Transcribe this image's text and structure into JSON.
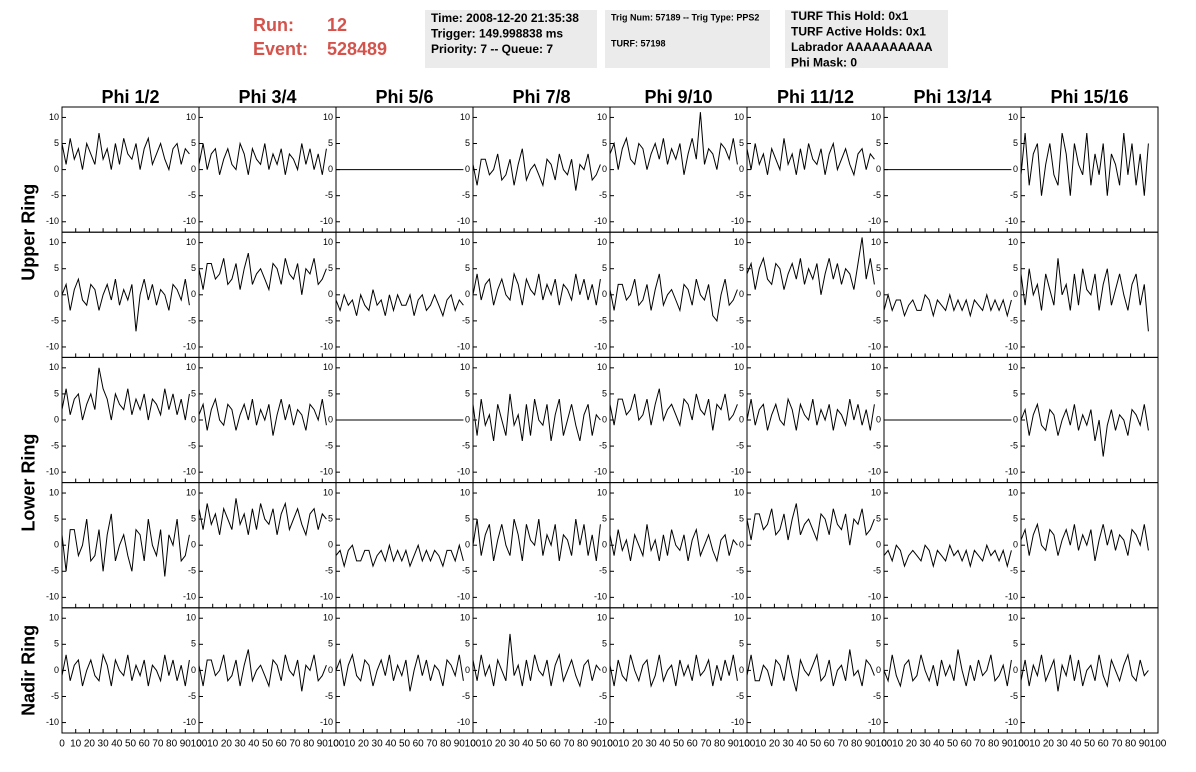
{
  "header": {
    "run_label": "Run:",
    "run": "12",
    "event_label": "Event:",
    "event": "528489",
    "info_boxes": [
      [
        "Time: 2008-12-20 21:35:38",
        "Trigger: 149.998838 ms",
        "Priority: 7 -- Queue: 7"
      ],
      [
        "Trig Num: 57189 -- Trig Type: PPS2",
        "TURF: 57198"
      ],
      [
        "TURF This Hold: 0x1",
        "TURF Active Holds: 0x1",
        "Labrador AAAAAAAAAA",
        "Phi Mask: 0"
      ]
    ]
  },
  "chart_data": {
    "type": "line",
    "columns": [
      "Phi 1/2",
      "Phi 3/4",
      "Phi 5/6",
      "Phi 7/8",
      "Phi 9/10",
      "Phi 11/12",
      "Phi 13/14",
      "Phi 15/16"
    ],
    "ring_labels": [
      "Upper Ring",
      "Lower Ring",
      "Nadir Ring"
    ],
    "color": "#000000",
    "x": [
      0,
      3,
      6,
      9,
      12,
      15,
      18,
      21,
      24,
      27,
      30,
      33,
      36,
      39,
      42,
      45,
      48,
      51,
      54,
      57,
      60,
      63,
      66,
      69,
      72,
      75,
      78,
      81,
      84,
      87,
      90,
      93
    ],
    "xlim": [
      0,
      100
    ],
    "xticks": [
      0,
      10,
      20,
      30,
      40,
      50,
      60,
      70,
      80,
      90,
      100
    ],
    "ylim": [
      -12,
      12
    ],
    "yticks": [
      -10,
      -5,
      0,
      5,
      10
    ],
    "panels": [
      [
        [
          5,
          1,
          6,
          2,
          4,
          0,
          5,
          3,
          1,
          7,
          2,
          4,
          0,
          5,
          1,
          6,
          3,
          2,
          5,
          0,
          4,
          6,
          1,
          3,
          5,
          2,
          0,
          4,
          5,
          1,
          4,
          3
        ],
        [
          1,
          5,
          0,
          3,
          4,
          -1,
          2,
          4,
          1,
          0,
          5,
          3,
          -1,
          4,
          2,
          1,
          5,
          0,
          3,
          1,
          4,
          -1,
          3,
          2,
          0,
          5,
          1,
          4,
          0,
          3,
          -1,
          4
        ],
        [
          0,
          0,
          0,
          0,
          0,
          0,
          0,
          0,
          0,
          0,
          0,
          0,
          0,
          0,
          0,
          0,
          0,
          0,
          0,
          0,
          0,
          0,
          0,
          0,
          0,
          0,
          0,
          0,
          0,
          0,
          0,
          0
        ],
        [
          1,
          -3,
          2,
          2,
          -1,
          0,
          3,
          -2,
          -1,
          2,
          -3,
          1,
          4,
          -2,
          0,
          1,
          -1,
          -3,
          2,
          1,
          -2,
          3,
          0,
          -1,
          2,
          -4,
          1,
          0,
          3,
          -2,
          -1,
          1
        ],
        [
          3,
          5,
          0,
          4,
          6,
          2,
          1,
          5,
          4,
          0,
          3,
          5,
          2,
          6,
          1,
          4,
          2,
          5,
          -1,
          3,
          6,
          2,
          11,
          1,
          4,
          3,
          0,
          5,
          4,
          2,
          6,
          1
        ],
        [
          4,
          0,
          5,
          1,
          3,
          -1,
          4,
          2,
          0,
          6,
          1,
          3,
          -1,
          4,
          0,
          5,
          2,
          1,
          4,
          -1,
          3,
          5,
          0,
          2,
          4,
          1,
          -1,
          3,
          4,
          0,
          3,
          2
        ],
        [
          0,
          0,
          0,
          0,
          0,
          0,
          0,
          0,
          0,
          0,
          0,
          0,
          0,
          0,
          0,
          0,
          0,
          0,
          0,
          0,
          0,
          0,
          0,
          0,
          0,
          0,
          0,
          0,
          0,
          0,
          0,
          0
        ],
        [
          -1,
          7,
          -3,
          3,
          5,
          -5,
          1,
          5,
          -1,
          -3,
          7,
          3,
          -5,
          5,
          1,
          -1,
          7,
          -3,
          3,
          -1,
          5,
          -5,
          3,
          1,
          -3,
          7,
          -1,
          5,
          -3,
          3,
          -5,
          5
        ]
      ],
      [
        [
          0,
          2,
          -3,
          1,
          3,
          -1,
          -2,
          2,
          1,
          -3,
          0,
          2,
          -1,
          3,
          -2,
          1,
          -1,
          2,
          -7,
          0,
          3,
          -1,
          2,
          -2,
          1,
          0,
          -3,
          2,
          1,
          -1,
          3,
          -2
        ],
        [
          5,
          1,
          6,
          6,
          3,
          4,
          7,
          2,
          3,
          6,
          1,
          5,
          8,
          2,
          4,
          5,
          3,
          1,
          6,
          5,
          2,
          7,
          4,
          3,
          6,
          0,
          5,
          4,
          7,
          2,
          3,
          5
        ],
        [
          -1,
          -3,
          0,
          -2,
          -1,
          -4,
          0,
          -2,
          -3,
          1,
          -2,
          -1,
          -4,
          0,
          -3,
          0,
          -2,
          -2,
          0,
          -4,
          -1,
          0,
          -3,
          -2,
          0,
          -2,
          -4,
          -1,
          0,
          -3,
          -1,
          -2
        ],
        [
          0,
          4,
          -1,
          2,
          3,
          -2,
          1,
          3,
          0,
          -1,
          4,
          2,
          -2,
          3,
          1,
          0,
          4,
          -1,
          2,
          0,
          3,
          -2,
          2,
          1,
          -1,
          4,
          0,
          3,
          -1,
          2,
          -2,
          3
        ],
        [
          1,
          -3,
          2,
          2,
          -1,
          0,
          3,
          -2,
          -1,
          2,
          -3,
          1,
          4,
          -2,
          0,
          1,
          -1,
          -3,
          2,
          1,
          -2,
          3,
          0,
          -1,
          2,
          -4,
          -5,
          0,
          3,
          -2,
          -1,
          1
        ],
        [
          4,
          6,
          1,
          5,
          7,
          3,
          2,
          6,
          5,
          1,
          4,
          6,
          3,
          7,
          2,
          5,
          3,
          6,
          0,
          4,
          7,
          3,
          6,
          2,
          5,
          4,
          1,
          6,
          11,
          3,
          7,
          2
        ],
        [
          -3,
          0,
          -3,
          -1,
          -1,
          -4,
          -2,
          -1,
          -3,
          -3,
          0,
          -1,
          -4,
          -1,
          -2,
          -3,
          0,
          -3,
          -1,
          -3,
          -1,
          -4,
          -1,
          -2,
          -3,
          0,
          -3,
          -1,
          -3,
          -1,
          -4,
          -1
        ],
        [
          4,
          -2,
          5,
          0,
          2,
          -3,
          4,
          1,
          -2,
          7,
          0,
          2,
          -3,
          4,
          -2,
          5,
          1,
          0,
          4,
          -3,
          2,
          5,
          -2,
          1,
          4,
          0,
          -3,
          2,
          4,
          -2,
          2,
          -7
        ]
      ],
      [
        [
          2,
          6,
          1,
          4,
          5,
          0,
          3,
          5,
          2,
          10,
          6,
          4,
          0,
          5,
          3,
          2,
          6,
          1,
          4,
          2,
          5,
          0,
          4,
          3,
          1,
          6,
          2,
          5,
          1,
          4,
          0,
          5
        ],
        [
          1,
          3,
          -2,
          2,
          4,
          0,
          -1,
          3,
          2,
          -2,
          1,
          3,
          0,
          4,
          -1,
          2,
          0,
          3,
          -3,
          1,
          4,
          0,
          3,
          -1,
          2,
          1,
          -2,
          3,
          2,
          0,
          4,
          -1
        ],
        [
          0,
          0,
          0,
          0,
          0,
          0,
          0,
          0,
          0,
          0,
          0,
          0,
          0,
          0,
          0,
          0,
          0,
          0,
          0,
          0,
          0,
          0,
          0,
          0,
          0,
          0,
          0,
          0,
          0,
          0,
          0,
          0
        ],
        [
          3,
          -3,
          4,
          -1,
          1,
          -4,
          3,
          0,
          -3,
          5,
          -1,
          1,
          -4,
          3,
          -3,
          4,
          0,
          -1,
          3,
          -4,
          1,
          4,
          -3,
          0,
          3,
          -1,
          -4,
          1,
          3,
          -3,
          1,
          0
        ],
        [
          3,
          -1,
          4,
          4,
          1,
          2,
          5,
          0,
          1,
          4,
          -1,
          3,
          6,
          0,
          2,
          3,
          1,
          -1,
          4,
          3,
          0,
          5,
          2,
          1,
          4,
          -2,
          3,
          2,
          5,
          0,
          1,
          3
        ],
        [
          0,
          4,
          -1,
          2,
          3,
          -2,
          1,
          3,
          0,
          -1,
          4,
          2,
          -2,
          3,
          1,
          0,
          4,
          -1,
          2,
          0,
          3,
          -2,
          2,
          1,
          -1,
          4,
          0,
          3,
          -1,
          2,
          -2,
          3
        ],
        [
          0,
          0,
          0,
          0,
          0,
          0,
          0,
          0,
          0,
          0,
          0,
          0,
          0,
          0,
          0,
          0,
          0,
          0,
          0,
          0,
          0,
          0,
          0,
          0,
          0,
          0,
          0,
          0,
          0,
          0,
          0,
          0
        ],
        [
          0,
          2,
          -3,
          1,
          3,
          -1,
          -2,
          2,
          1,
          -3,
          0,
          2,
          -1,
          3,
          -2,
          1,
          -1,
          2,
          -4,
          0,
          -7,
          -1,
          2,
          -2,
          1,
          0,
          -3,
          2,
          1,
          -1,
          3,
          -2
        ]
      ],
      [
        [
          2,
          -5,
          3,
          3,
          -2,
          0,
          5,
          -3,
          -2,
          3,
          -5,
          2,
          6,
          -3,
          0,
          2,
          -2,
          -5,
          3,
          2,
          -3,
          5,
          0,
          -2,
          3,
          -6,
          2,
          0,
          5,
          -3,
          -2,
          2
        ],
        [
          7,
          3,
          8,
          4,
          6,
          2,
          7,
          5,
          3,
          9,
          4,
          6,
          2,
          7,
          3,
          8,
          5,
          4,
          7,
          2,
          6,
          8,
          3,
          5,
          7,
          4,
          2,
          6,
          7,
          3,
          6,
          5
        ],
        [
          -2,
          -1,
          -4,
          -1,
          0,
          -3,
          -3,
          -1,
          -1,
          -4,
          -2,
          -1,
          -3,
          0,
          -3,
          -1,
          -3,
          -1,
          -4,
          -2,
          0,
          -3,
          -1,
          -3,
          -1,
          -2,
          -4,
          -1,
          -1,
          -3,
          0,
          -3
        ],
        [
          0,
          5,
          -2,
          2,
          4,
          -3,
          1,
          4,
          0,
          -2,
          5,
          2,
          -3,
          4,
          1,
          0,
          5,
          -2,
          2,
          0,
          4,
          -3,
          2,
          1,
          -2,
          5,
          0,
          4,
          -2,
          2,
          -3,
          4
        ],
        [
          2,
          -2,
          3,
          -1,
          1,
          -3,
          2,
          0,
          -2,
          4,
          -1,
          1,
          -3,
          2,
          -2,
          3,
          0,
          -1,
          2,
          -3,
          1,
          3,
          -2,
          0,
          2,
          -1,
          -3,
          1,
          2,
          -2,
          1,
          0
        ],
        [
          5,
          1,
          6,
          6,
          3,
          4,
          7,
          2,
          3,
          6,
          1,
          5,
          8,
          2,
          4,
          5,
          3,
          1,
          6,
          5,
          2,
          7,
          4,
          3,
          6,
          0,
          5,
          4,
          7,
          2,
          3,
          5
        ],
        [
          -2,
          -1,
          -3,
          0,
          -1,
          -4,
          -2,
          -1,
          -2,
          -3,
          0,
          -1,
          -4,
          -1,
          -2,
          -3,
          0,
          -2,
          -1,
          -3,
          -1,
          -4,
          -1,
          -2,
          -3,
          0,
          -2,
          -1,
          -3,
          -1,
          -4,
          -1
        ],
        [
          1,
          3,
          -2,
          2,
          4,
          0,
          -1,
          3,
          2,
          -2,
          1,
          3,
          0,
          4,
          -1,
          2,
          0,
          3,
          -3,
          1,
          4,
          0,
          3,
          -1,
          2,
          1,
          -2,
          3,
          2,
          0,
          4,
          -1
        ]
      ],
      [
        [
          -1,
          3,
          -2,
          1,
          2,
          -3,
          0,
          2,
          -1,
          -2,
          3,
          1,
          -3,
          2,
          0,
          -1,
          3,
          -2,
          1,
          -1,
          2,
          -3,
          1,
          0,
          -2,
          3,
          -1,
          2,
          -2,
          1,
          -3,
          2
        ],
        [
          1,
          -3,
          2,
          2,
          -1,
          0,
          3,
          -2,
          -1,
          2,
          -3,
          1,
          4,
          -2,
          0,
          1,
          -1,
          -3,
          2,
          1,
          -2,
          3,
          0,
          -1,
          2,
          -4,
          1,
          0,
          3,
          -2,
          -1,
          1
        ],
        [
          0,
          2,
          -3,
          1,
          3,
          -1,
          -2,
          2,
          1,
          -3,
          0,
          2,
          -1,
          3,
          -2,
          1,
          -1,
          2,
          -4,
          0,
          3,
          -1,
          2,
          -2,
          1,
          0,
          -3,
          2,
          1,
          -1,
          3,
          -2
        ],
        [
          2,
          -2,
          3,
          -1,
          1,
          -3,
          2,
          0,
          -2,
          7,
          -1,
          1,
          -3,
          2,
          -2,
          3,
          0,
          -1,
          2,
          -3,
          1,
          3,
          -2,
          0,
          2,
          -1,
          -3,
          1,
          2,
          -2,
          1,
          0
        ],
        [
          1,
          -3,
          2,
          -1,
          -2,
          3,
          0,
          -2,
          1,
          2,
          -3,
          -1,
          3,
          -2,
          0,
          1,
          -3,
          2,
          -1,
          1,
          -2,
          3,
          -1,
          0,
          2,
          -3,
          1,
          -2,
          2,
          -1,
          3,
          -2
        ],
        [
          -1,
          3,
          -2,
          -2,
          1,
          0,
          -3,
          2,
          1,
          -2,
          3,
          -1,
          -4,
          2,
          0,
          -1,
          1,
          3,
          -2,
          -1,
          2,
          -3,
          0,
          1,
          -2,
          4,
          -1,
          0,
          -3,
          2,
          1,
          -1
        ],
        [
          0,
          -2,
          3,
          -1,
          -3,
          1,
          2,
          -2,
          -1,
          3,
          0,
          -2,
          1,
          -3,
          2,
          -1,
          1,
          -2,
          4,
          0,
          -3,
          1,
          -2,
          2,
          -1,
          0,
          3,
          -2,
          -1,
          1,
          -3,
          2
        ],
        [
          -2,
          2,
          -3,
          1,
          -1,
          3,
          -2,
          0,
          2,
          -4,
          1,
          -1,
          3,
          -2,
          2,
          -3,
          0,
          1,
          -2,
          3,
          -1,
          -3,
          2,
          0,
          -2,
          1,
          3,
          -1,
          -2,
          2,
          -1,
          0
        ]
      ]
    ]
  }
}
